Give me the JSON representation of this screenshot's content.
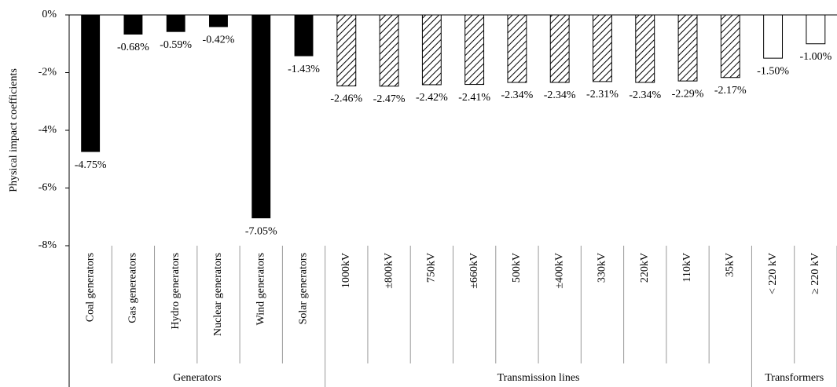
{
  "chart_data": {
    "type": "bar",
    "ylabel": "Physical impact coefficients",
    "ylim": [
      -8,
      0
    ],
    "yticks": [
      {
        "value": 0,
        "label": "0%"
      },
      {
        "value": -2,
        "label": "-2%"
      },
      {
        "value": -4,
        "label": "-4%"
      },
      {
        "value": -6,
        "label": "-6%"
      },
      {
        "value": -8,
        "label": "-8%"
      }
    ],
    "groups": [
      {
        "label": "Generators",
        "style": "solid",
        "color": "#000000",
        "categories": [
          "Coal generators",
          "Gas genereators",
          "Hydro generators",
          "Nuclear generators",
          "Wind generators",
          "Solar generators"
        ],
        "values": [
          -4.75,
          -0.68,
          -0.59,
          -0.42,
          -7.05,
          -1.43
        ],
        "value_labels": [
          "-4.75%",
          "-0.68%",
          "-0.59%",
          "-0.42%",
          "-7.05%",
          "-1.43%"
        ]
      },
      {
        "label": "Transmission lines",
        "style": "hatched",
        "color": "#000000",
        "categories": [
          "1000kV",
          "±800kV",
          "750kV",
          "±660kV",
          "500kV",
          "±400kV",
          "330kV",
          "220kV",
          "110kV",
          "35kV"
        ],
        "values": [
          -2.46,
          -2.47,
          -2.42,
          -2.41,
          -2.34,
          -2.34,
          -2.31,
          -2.34,
          -2.29,
          -2.17
        ],
        "value_labels": [
          "-2.46%",
          "-2.47%",
          "-2.42%",
          "-2.41%",
          "-2.34%",
          "-2.34%",
          "-2.31%",
          "-2.34%",
          "-2.29%",
          "-2.17%"
        ]
      },
      {
        "label": "Transformers",
        "style": "outline",
        "color": "#000000",
        "categories": [
          "< 220 kV",
          "≥ 220 kV"
        ],
        "values": [
          -1.5,
          -1.0
        ],
        "value_labels": [
          "-1.50%",
          "-1.00%"
        ]
      }
    ]
  }
}
